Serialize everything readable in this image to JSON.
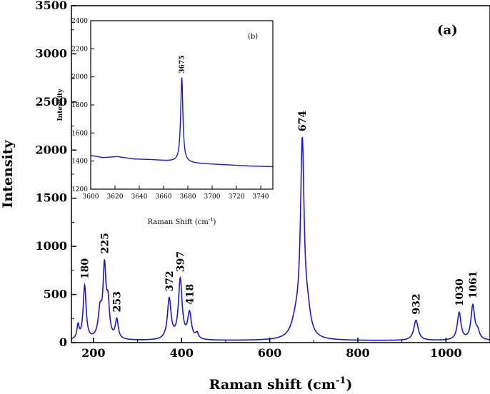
{
  "chart_data": [
    {
      "type": "line",
      "panel_label": "(a)",
      "xlabel": "Raman shift (cm",
      "xlabel_sup": "-1",
      "xlabel_end": ")",
      "ylabel": "Intensity",
      "xlim": [
        150,
        1100
      ],
      "ylim": [
        0,
        3500
      ],
      "xticks": [
        200,
        400,
        600,
        800,
        1000
      ],
      "yticks": [
        0,
        500,
        1000,
        1500,
        2000,
        2500,
        3000,
        3500
      ],
      "grid": false,
      "color": "#1a1ac8",
      "baseline": 20,
      "peaks": [
        {
          "x": 165,
          "y": 140,
          "w": 3,
          "label": null
        },
        {
          "x": 180,
          "y": 560,
          "w": 4,
          "label": "180"
        },
        {
          "x": 215,
          "y": 280,
          "w": 5,
          "label": null
        },
        {
          "x": 225,
          "y": 710,
          "w": 4,
          "label": "225"
        },
        {
          "x": 233,
          "y": 340,
          "w": 4,
          "label": null
        },
        {
          "x": 253,
          "y": 200,
          "w": 4,
          "label": "253"
        },
        {
          "x": 372,
          "y": 420,
          "w": 5,
          "label": "372"
        },
        {
          "x": 397,
          "y": 620,
          "w": 5,
          "label": "397"
        },
        {
          "x": 418,
          "y": 270,
          "w": 5,
          "label": "418"
        },
        {
          "x": 435,
          "y": 60,
          "w": 4,
          "label": null
        },
        {
          "x": 660,
          "y": 180,
          "w": 12,
          "label": null
        },
        {
          "x": 674,
          "y": 1970,
          "w": 5,
          "label": "674"
        },
        {
          "x": 686,
          "y": 220,
          "w": 8,
          "label": null
        },
        {
          "x": 932,
          "y": 210,
          "w": 6,
          "label": "932"
        },
        {
          "x": 1030,
          "y": 285,
          "w": 5,
          "label": "1030"
        },
        {
          "x": 1061,
          "y": 355,
          "w": 5,
          "label": "1061"
        },
        {
          "x": 1072,
          "y": 80,
          "w": 5,
          "label": null
        }
      ]
    },
    {
      "type": "line",
      "panel_label": "(b)",
      "xlabel": "Raman Shift (cm",
      "xlabel_sup": "-1",
      "xlabel_end": ")",
      "ylabel": "Intensity",
      "xlim": [
        3600,
        3750
      ],
      "ylim": [
        1200,
        2400
      ],
      "xticks": [
        3600,
        3620,
        3640,
        3660,
        3680,
        3700,
        3720,
        3740
      ],
      "yticks": [
        1200,
        1400,
        1600,
        1800,
        2000,
        2200,
        2400
      ],
      "grid": false,
      "color": "#1a1ac8",
      "background_points": [
        [
          3600,
          1440
        ],
        [
          3610,
          1425
        ],
        [
          3622,
          1432
        ],
        [
          3635,
          1415
        ],
        [
          3650,
          1410
        ],
        [
          3665,
          1400
        ],
        [
          3672,
          1395
        ],
        [
          3680,
          1388
        ],
        [
          3690,
          1382
        ],
        [
          3700,
          1378
        ],
        [
          3715,
          1372
        ],
        [
          3730,
          1365
        ],
        [
          3750,
          1360
        ]
      ],
      "peaks": [
        {
          "x": 3675,
          "y": 1995,
          "w": 1.1,
          "label": "3675"
        }
      ]
    }
  ]
}
